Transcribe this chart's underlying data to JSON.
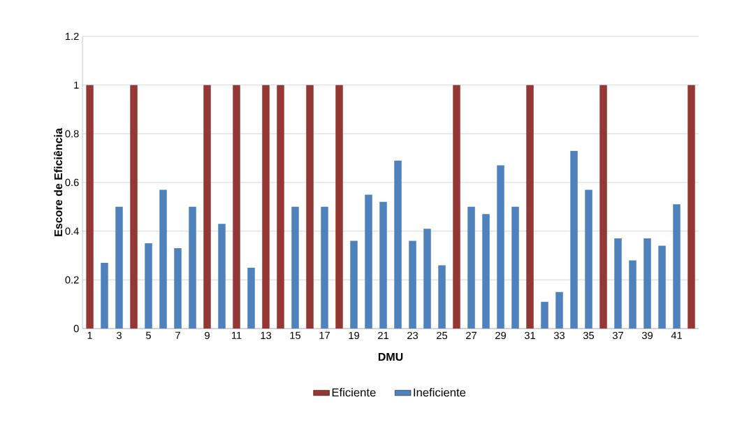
{
  "chart_data": {
    "type": "bar",
    "xlabel": "DMU",
    "ylabel": "Escore de Eficiência",
    "categories": [
      "1",
      null,
      "3",
      null,
      "5",
      null,
      "7",
      null,
      "9",
      null,
      "11",
      null,
      "13",
      null,
      "15",
      null,
      "17",
      null,
      "19",
      null,
      "21",
      null,
      "23",
      null,
      "25",
      null,
      "27",
      null,
      "29",
      null,
      "31",
      null,
      "33",
      null,
      "35",
      null,
      "37",
      null,
      "39",
      null,
      "41",
      null
    ],
    "series": [
      {
        "name": "Eficiente",
        "color": "#953735",
        "values": [
          1,
          null,
          null,
          1,
          null,
          null,
          null,
          null,
          1,
          null,
          1,
          null,
          1,
          1,
          null,
          1,
          null,
          1,
          null,
          null,
          null,
          null,
          null,
          null,
          null,
          1,
          null,
          null,
          null,
          null,
          1,
          null,
          null,
          null,
          null,
          1,
          null,
          null,
          null,
          null,
          null,
          1
        ]
      },
      {
        "name": "Ineficiente",
        "color": "#4f81bd",
        "values": [
          null,
          0.27,
          0.5,
          null,
          0.35,
          0.57,
          0.33,
          0.5,
          null,
          0.43,
          null,
          0.25,
          null,
          null,
          0.5,
          null,
          0.5,
          null,
          0.36,
          0.55,
          0.52,
          0.69,
          0.36,
          0.41,
          0.26,
          null,
          0.5,
          0.47,
          0.67,
          0.5,
          null,
          0.11,
          0.15,
          0.73,
          0.57,
          null,
          0.37,
          0.28,
          0.37,
          0.34,
          0.51,
          null
        ]
      }
    ],
    "ylim": [
      0,
      1.2
    ],
    "yticks": [
      0,
      0.2,
      0.4,
      0.6,
      0.8,
      1,
      1.2
    ],
    "grid": "y",
    "legend": "bottom"
  }
}
